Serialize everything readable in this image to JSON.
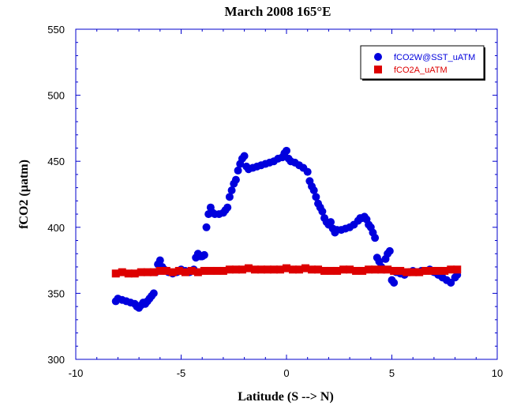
{
  "chart_data": {
    "type": "scatter",
    "title": "March 2008 165°E",
    "xlabel": "Latitude (S --> N)",
    "ylabel": "fCO2 (µatm)",
    "xlim": [
      -10,
      10
    ],
    "ylim": [
      300,
      550
    ],
    "xticks": [
      -10,
      -5,
      0,
      5,
      10
    ],
    "yticks": [
      300,
      350,
      400,
      450,
      500,
      550
    ],
    "grid": false,
    "legend_position": "top-right",
    "colors": {
      "axes": "#0000cc",
      "series1": "#0000dd",
      "series2": "#dd0000"
    },
    "series": [
      {
        "name": "fCO2W@SST_uATM",
        "marker": "circle",
        "color": "#0000dd",
        "x": [
          -8.1,
          -8.0,
          -7.8,
          -7.6,
          -7.4,
          -7.2,
          -7.1,
          -7.0,
          -6.9,
          -6.8,
          -6.7,
          -6.6,
          -6.5,
          -6.4,
          -6.3,
          -6.2,
          -6.1,
          -6.0,
          -5.9,
          -5.8,
          -5.6,
          -5.4,
          -5.2,
          -5.0,
          -4.8,
          -4.6,
          -4.4,
          -4.3,
          -4.2,
          -4.1,
          -4.0,
          -3.9,
          -3.8,
          -3.7,
          -3.6,
          -3.5,
          -3.4,
          -3.2,
          -3.0,
          -2.9,
          -2.8,
          -2.7,
          -2.6,
          -2.5,
          -2.4,
          -2.3,
          -2.2,
          -2.1,
          -2.0,
          -1.9,
          -1.8,
          -1.6,
          -1.4,
          -1.2,
          -1.0,
          -0.8,
          -0.6,
          -0.4,
          -0.2,
          -0.1,
          0.0,
          0.1,
          0.2,
          0.4,
          0.6,
          0.8,
          1.0,
          1.1,
          1.2,
          1.3,
          1.4,
          1.5,
          1.6,
          1.7,
          1.8,
          1.9,
          2.0,
          2.1,
          2.2,
          2.3,
          2.4,
          2.6,
          2.8,
          3.0,
          3.2,
          3.4,
          3.5,
          3.6,
          3.7,
          3.8,
          3.9,
          4.0,
          4.1,
          4.2,
          4.3,
          4.4,
          4.5,
          4.6,
          4.7,
          4.8,
          4.9,
          5.0,
          5.1,
          5.2,
          5.4,
          5.6,
          5.8,
          6.0,
          6.2,
          6.4,
          6.6,
          6.8,
          7.0,
          7.2,
          7.4,
          7.6,
          7.8,
          8.0,
          8.1
        ],
        "y": [
          344,
          346,
          345,
          344,
          343,
          342,
          340,
          339,
          341,
          343,
          342,
          344,
          346,
          348,
          350,
          366,
          372,
          375,
          370,
          368,
          366,
          365,
          366,
          368,
          367,
          366,
          368,
          377,
          380,
          378,
          378,
          379,
          400,
          410,
          415,
          411,
          410,
          410,
          411,
          413,
          415,
          423,
          428,
          433,
          436,
          443,
          448,
          452,
          454,
          446,
          444,
          445,
          446,
          447,
          448,
          449,
          450,
          452,
          453,
          456,
          458,
          452,
          450,
          449,
          447,
          445,
          442,
          435,
          431,
          428,
          423,
          418,
          415,
          412,
          407,
          404,
          402,
          404,
          399,
          396,
          398,
          398,
          399,
          400,
          402,
          405,
          407,
          407,
          408,
          406,
          402,
          400,
          396,
          392,
          377,
          374,
          370,
          368,
          376,
          380,
          382,
          360,
          358,
          366,
          365,
          364,
          366,
          367,
          366,
          367,
          367,
          368,
          366,
          364,
          362,
          360,
          358,
          362,
          364
        ]
      },
      {
        "name": "fCO2A_uATM",
        "marker": "square",
        "color": "#dd0000",
        "x": [
          -8.1,
          -7.8,
          -7.5,
          -7.2,
          -6.9,
          -6.6,
          -6.3,
          -6.0,
          -5.7,
          -5.4,
          -5.1,
          -4.8,
          -4.5,
          -4.2,
          -3.9,
          -3.6,
          -3.3,
          -3.0,
          -2.7,
          -2.4,
          -2.1,
          -1.8,
          -1.5,
          -1.2,
          -0.9,
          -0.6,
          -0.3,
          0.0,
          0.3,
          0.6,
          0.9,
          1.2,
          1.5,
          1.8,
          2.1,
          2.4,
          2.7,
          3.0,
          3.3,
          3.6,
          3.9,
          4.2,
          4.5,
          4.8,
          5.1,
          5.4,
          5.7,
          6.0,
          6.3,
          6.6,
          6.9,
          7.2,
          7.5,
          7.8,
          8.1
        ],
        "y": [
          365,
          366,
          365,
          365,
          366,
          366,
          366,
          367,
          367,
          366,
          367,
          366,
          367,
          366,
          367,
          367,
          367,
          367,
          368,
          368,
          368,
          369,
          368,
          368,
          368,
          368,
          368,
          369,
          368,
          368,
          369,
          368,
          368,
          367,
          367,
          367,
          368,
          368,
          367,
          367,
          368,
          368,
          368,
          368,
          367,
          367,
          366,
          366,
          366,
          367,
          367,
          367,
          367,
          368,
          368
        ]
      }
    ]
  }
}
